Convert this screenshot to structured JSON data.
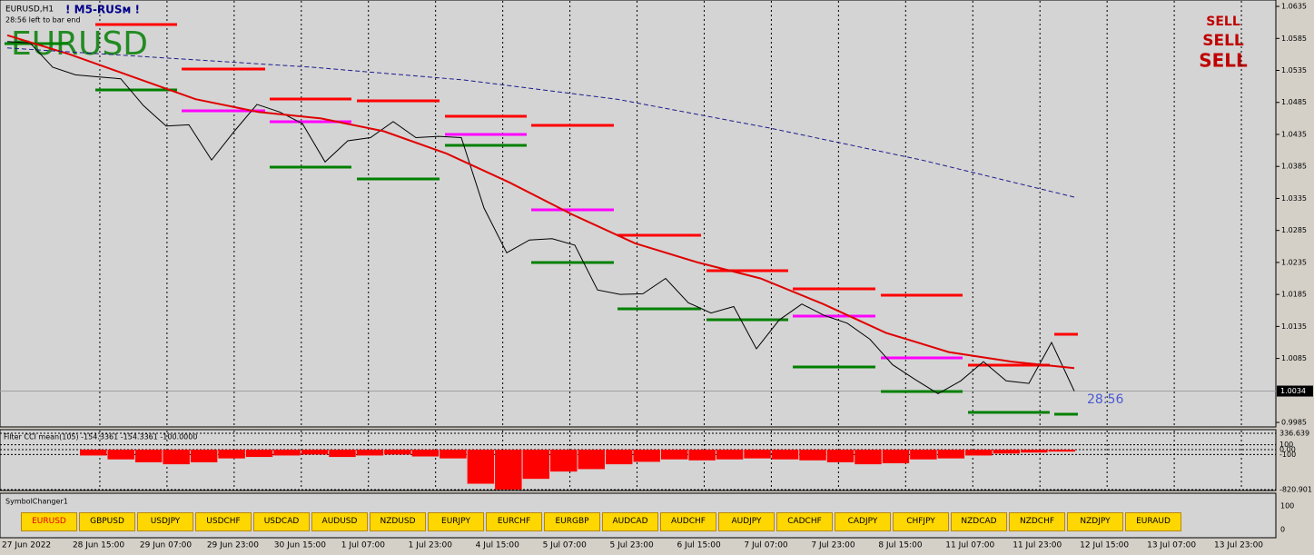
{
  "header": {
    "symbol": "EURUSD,H1",
    "banner": "! M5-RUSм !",
    "timer": "28:56 left to bar end",
    "watermark": "EURUSD",
    "signals": [
      "SELL",
      "SELL",
      "SELL"
    ],
    "countdown": "28:56"
  },
  "chart_data": {
    "type": "line",
    "series": [
      {
        "color": "#000000",
        "values": [
          1.058,
          1.0578,
          1.054,
          1.0528,
          1.0525,
          1.0522,
          1.048,
          1.0448,
          1.045,
          1.0395,
          1.044,
          1.0482,
          1.047,
          1.0452,
          1.0392,
          1.0425,
          1.043,
          1.0455,
          1.043,
          1.0432,
          1.043,
          1.032,
          1.025,
          1.027,
          1.0272,
          1.0262,
          1.0192,
          1.0185,
          1.0186,
          1.021,
          1.0172,
          1.0156,
          1.0166,
          1.01,
          1.0145,
          1.017,
          1.0152,
          1.014,
          1.0115,
          1.0075,
          1.0052,
          1.003,
          1.005,
          1.008,
          1.005,
          1.0046,
          1.011,
          1.0034
        ]
      },
      {
        "color": "#e00000",
        "values": [
          1.059,
          1.056,
          1.0525,
          1.049,
          1.047,
          1.046,
          1.044,
          1.0405,
          1.036,
          1.031,
          1.0265,
          1.0235,
          1.021,
          1.017,
          1.0125,
          1.0095,
          1.008,
          1.007
        ]
      },
      {
        "color": "#1c1c8c",
        "values": [
          1.057,
          1.0555,
          1.054,
          1.052,
          1.049,
          1.0445,
          1.0395,
          1.0337
        ]
      }
    ],
    "ylim": [
      0.9978,
      1.0645
    ],
    "yticks": [
      1.0635,
      1.0585,
      1.0535,
      1.0485,
      1.0435,
      1.0385,
      1.0335,
      1.0285,
      1.0235,
      1.0185,
      1.0135,
      1.0085,
      0.9985
    ],
    "last_price": 1.0034,
    "grid": true,
    "x_labels": [
      "27 Jun 2022",
      "28 Jun 15:00",
      "29 Jun 07:00",
      "29 Jun 23:00",
      "30 Jun 15:00",
      "1 Jul 07:00",
      "1 Jul 23:00",
      "4 Jul 15:00",
      "5 Jul 07:00",
      "5 Jul 23:00",
      "6 Jul 15:00",
      "7 Jul 07:00",
      "7 Jul 23:00",
      "8 Jul 15:00",
      "11 Jul 07:00",
      "11 Jul 23:00",
      "12 Jul 15:00",
      "13 Jul 07:00",
      "13 Jul 23:00"
    ]
  },
  "indicator": {
    "type": "bar",
    "title": "Filter CCI mean(105) -154.3361 -154.3361 -100.0000",
    "color": "#ff0000",
    "values": [
      -120,
      -200,
      -260,
      -300,
      -260,
      -180,
      -150,
      -120,
      -100,
      -150,
      -120,
      -100,
      -140,
      -180,
      -700,
      -820,
      -600,
      -450,
      -400,
      -300,
      -250,
      -200,
      -220,
      -200,
      -180,
      -200,
      -220,
      -260,
      -300,
      -280,
      -200,
      -180,
      -120,
      -80,
      -60,
      -40
    ],
    "ylim": [
      -820.901,
      336.639
    ],
    "yticks": [
      336.639,
      100,
      {
        "value": 0,
        "label": "0.00"
      },
      -100,
      -820.901
    ]
  },
  "symbol_changer": {
    "title": "SymbolChanger1",
    "scale": [
      100,
      0
    ],
    "buttons": [
      "EURUSD",
      "GBPUSD",
      "USDJPY",
      "USDCHF",
      "USDCAD",
      "AUDUSD",
      "NZDUSD",
      "EURJPY",
      "EURCHF",
      "EURGBP",
      "AUDCAD",
      "AUDCHF",
      "AUDJPY",
      "CADCHF",
      "CADJPY",
      "CHFJPY",
      "NZDCAD",
      "NZDCHF",
      "NZDJPY",
      "EURAUD"
    ]
  }
}
